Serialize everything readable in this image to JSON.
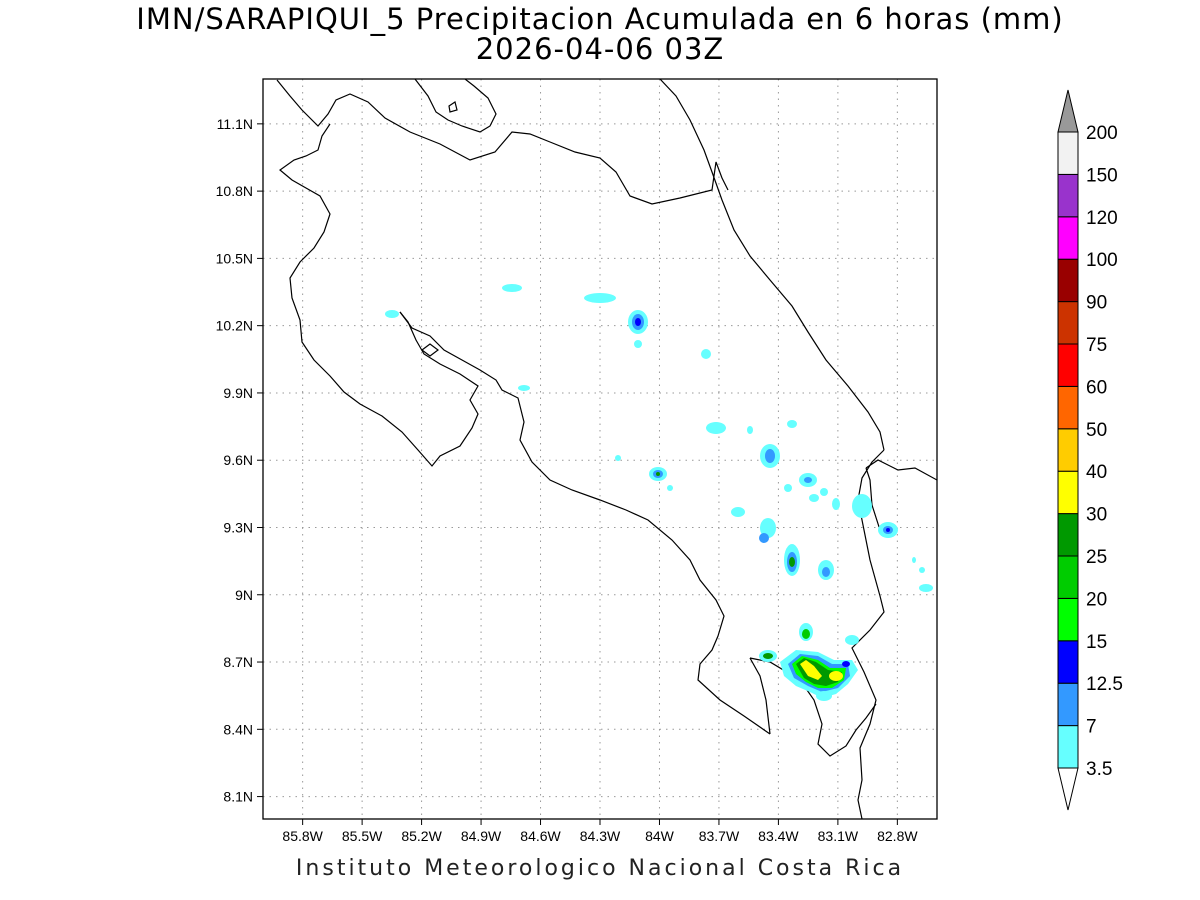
{
  "title": {
    "line1": "IMN/SARAPIQUI_5 Precipitacion Acumulada en 6 horas (mm)",
    "line2": "2026-04-06 03Z"
  },
  "footer": "Instituto Meteorologico Nacional Costa Rica",
  "map": {
    "lon_range": [
      -86.0,
      -82.6
    ],
    "lat_range": [
      8.0,
      11.3
    ],
    "x_ticks": [
      "85.8W",
      "85.5W",
      "85.2W",
      "84.9W",
      "84.6W",
      "84.3W",
      "84W",
      "83.7W",
      "83.4W",
      "83.1W",
      "82.8W"
    ],
    "y_ticks": [
      "11.1N",
      "10.8N",
      "10.5N",
      "10.2N",
      "9.9N",
      "9.6N",
      "9.3N",
      "9N",
      "8.7N",
      "8.4N",
      "8.1N"
    ],
    "grid": true
  },
  "colorbar": {
    "labels": [
      "3.5",
      "7",
      "12.5",
      "15",
      "20",
      "25",
      "30",
      "40",
      "50",
      "60",
      "75",
      "90",
      "100",
      "120",
      "150",
      "200"
    ],
    "colors": [
      "#66ffff",
      "#3399ff",
      "#0000ff",
      "#00ff00",
      "#00cc00",
      "#009900",
      "#ffff00",
      "#ffcc00",
      "#ff6600",
      "#ff0000",
      "#cc3300",
      "#990000",
      "#ff00ff",
      "#9933cc",
      "#f2f2f2"
    ],
    "over_color": "#999999",
    "under_color": "#ffffff"
  }
}
